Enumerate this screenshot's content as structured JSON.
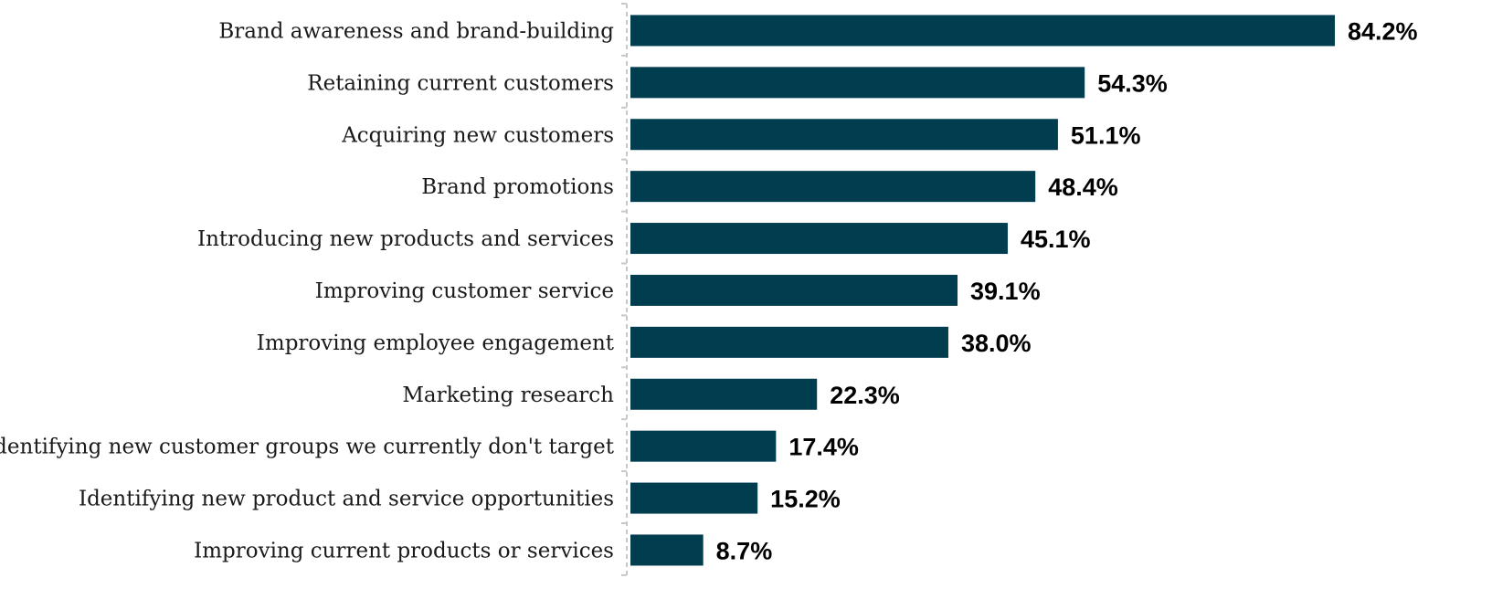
{
  "chart_data": {
    "type": "bar",
    "orientation": "horizontal",
    "title": "",
    "xlabel": "",
    "ylabel": "",
    "xlim": [
      0,
      100
    ],
    "grid": false,
    "legend": "none",
    "categories": [
      "Brand awareness and brand-building",
      "Retaining current customers",
      "Acquiring new customers",
      "Brand promotions",
      "Introducing new products and services",
      "Improving customer service",
      "Improving employee engagement",
      "Marketing research",
      "Identifying new customer groups we currently don't target",
      "Identifying new product and service opportunities",
      "Improving current products or services"
    ],
    "values": [
      84.2,
      54.3,
      51.1,
      48.4,
      45.1,
      39.1,
      38.0,
      22.3,
      17.4,
      15.2,
      8.7
    ],
    "value_labels": [
      "84.2%",
      "54.3%",
      "51.1%",
      "48.4%",
      "45.1%",
      "39.1%",
      "38.0%",
      "22.3%",
      "17.4%",
      "15.2%",
      "8.7%"
    ],
    "bar_color": "#003d4f"
  }
}
